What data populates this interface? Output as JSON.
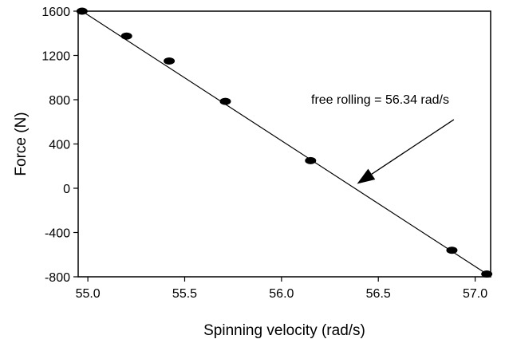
{
  "chart_data": {
    "type": "scatter",
    "xlabel": "Spinning velocity (rad/s)",
    "ylabel": "Force (N)",
    "xlim": [
      54.95,
      57.08
    ],
    "ylim": [
      -800,
      1600
    ],
    "x_ticks": [
      55.0,
      55.5,
      56.0,
      56.5,
      57.0
    ],
    "x_tick_labels": [
      "55.0",
      "55.5",
      "56.0",
      "56.5",
      "57.0"
    ],
    "y_ticks": [
      -800,
      -400,
      0,
      400,
      800,
      1200,
      1600
    ],
    "y_tick_labels": [
      "-800",
      "-400",
      "0",
      "400",
      "800",
      "1200",
      "1600"
    ],
    "grid": false,
    "points": [
      {
        "x": 54.97,
        "y": 1600
      },
      {
        "x": 55.2,
        "y": 1375
      },
      {
        "x": 55.42,
        "y": 1150
      },
      {
        "x": 55.71,
        "y": 785
      },
      {
        "x": 56.15,
        "y": 250
      },
      {
        "x": 56.88,
        "y": -560
      },
      {
        "x": 57.06,
        "y": -775
      }
    ],
    "fit_line": {
      "x": [
        54.97,
        57.06
      ],
      "y": [
        1600,
        -775
      ]
    },
    "annotation": {
      "text": "free rolling = 56.34 rad/s",
      "arrow_from": {
        "x": 56.89,
        "y": 620
      },
      "arrow_to": {
        "x": 56.39,
        "y": 40
      }
    }
  }
}
